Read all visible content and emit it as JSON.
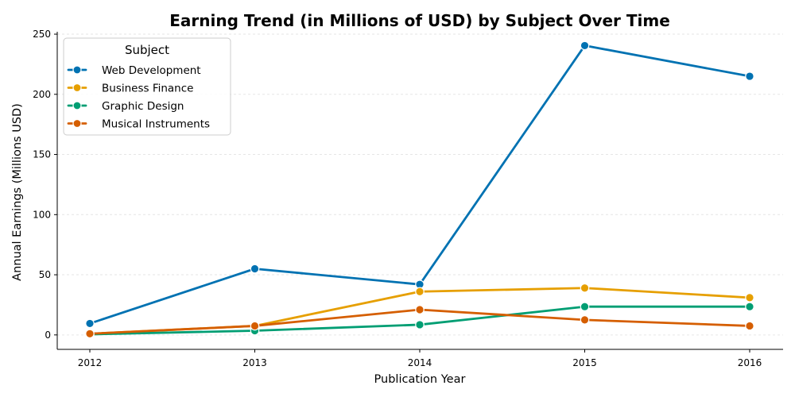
{
  "chart_data": {
    "type": "line",
    "title": "Earning Trend (in Millions of USD) by Subject Over Time",
    "xlabel": "Publication Year",
    "ylabel": "Annual Earnings (Millions USD)",
    "x": [
      2012,
      2013,
      2014,
      2015,
      2016
    ],
    "x_tick_labels": [
      "2012",
      "2013",
      "2014",
      "2015",
      "2016"
    ],
    "ylim": [
      -12,
      252
    ],
    "y_ticks": [
      0,
      50,
      100,
      150,
      200,
      250
    ],
    "grid": true,
    "legend": {
      "title": "Subject",
      "placement": "top-left"
    },
    "series": [
      {
        "name": "Web Development",
        "color": "#0072b2",
        "values": [
          9.5,
          55,
          42,
          240.5,
          215
        ]
      },
      {
        "name": "Business Finance",
        "color": "#e69f00",
        "values": [
          1,
          7.5,
          36,
          39,
          31
        ]
      },
      {
        "name": "Graphic Design",
        "color": "#009e73",
        "values": [
          0.5,
          3.5,
          8.5,
          23.5,
          23.5
        ]
      },
      {
        "name": "Musical Instruments",
        "color": "#d55e00",
        "values": [
          1,
          7.5,
          21,
          12.5,
          7.5
        ]
      }
    ]
  }
}
